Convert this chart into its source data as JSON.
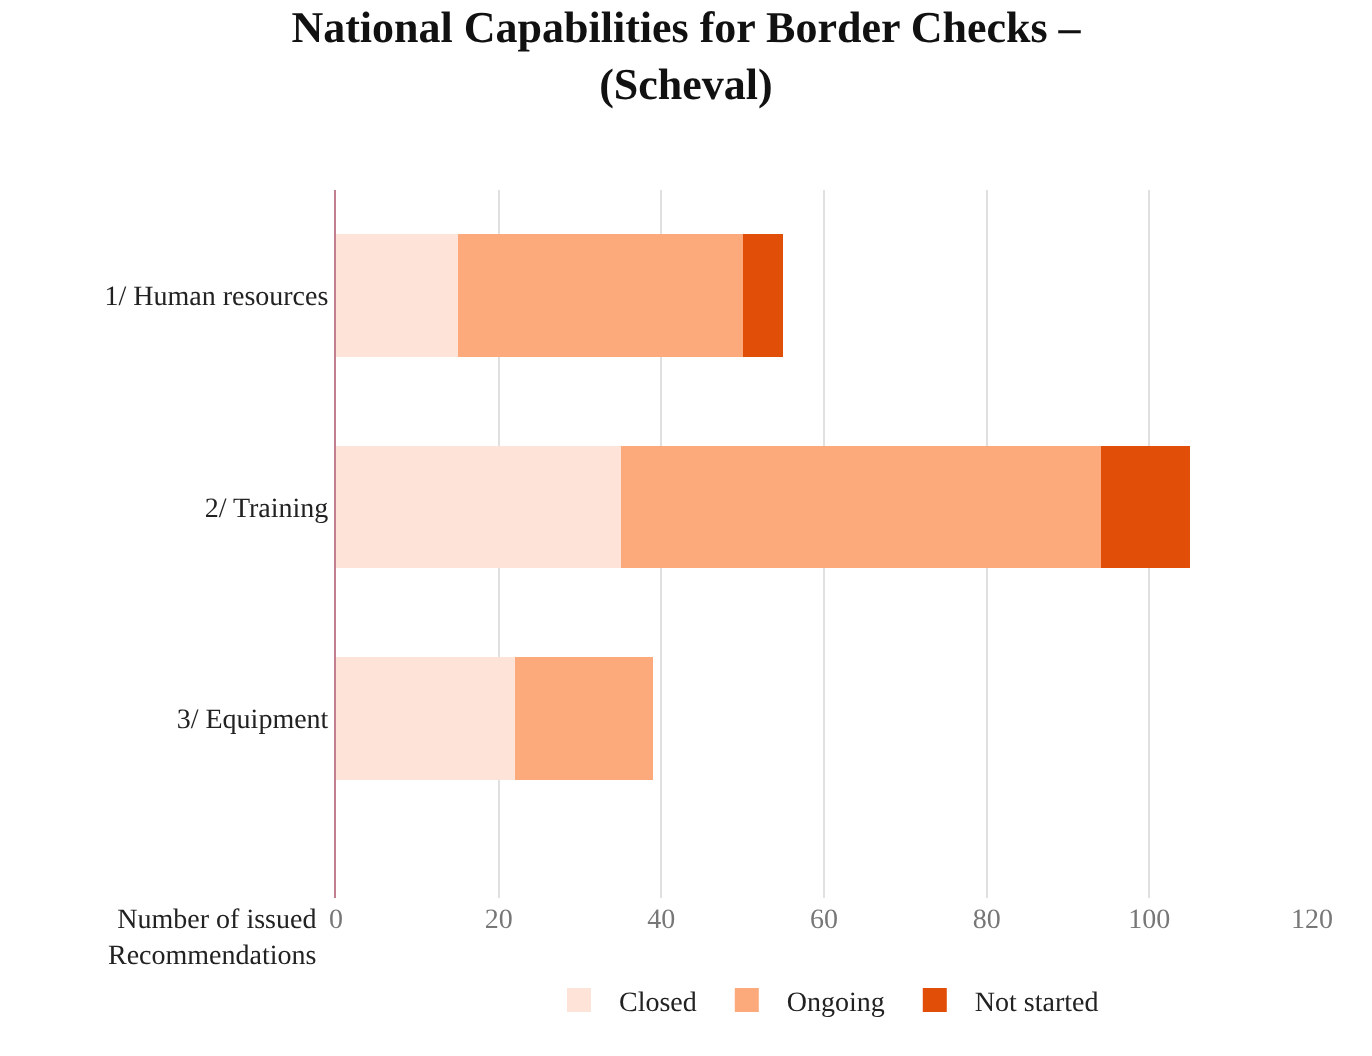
{
  "chart_data": {
    "type": "bar",
    "orientation": "horizontal",
    "stacked": true,
    "title": "National Capabilities for Border Checks –\n(Scheval)",
    "ylabel": "Number of issued\nRecommendations",
    "categories": [
      "1/ Human resources",
      "2/ Training",
      "3/ Equipment"
    ],
    "series": [
      {
        "name": "Closed",
        "color": "#fde3d8",
        "values": [
          15,
          35,
          22
        ]
      },
      {
        "name": "Ongoing",
        "color": "#fca97c",
        "values": [
          35,
          59,
          17
        ]
      },
      {
        "name": "Not started",
        "color": "#e04e08",
        "values": [
          5,
          11,
          0
        ]
      }
    ],
    "xlim": [
      0,
      120
    ],
    "xticks": [
      0,
      20,
      40,
      60,
      80,
      100,
      120
    ],
    "grid": "x",
    "legend": "bottom"
  }
}
